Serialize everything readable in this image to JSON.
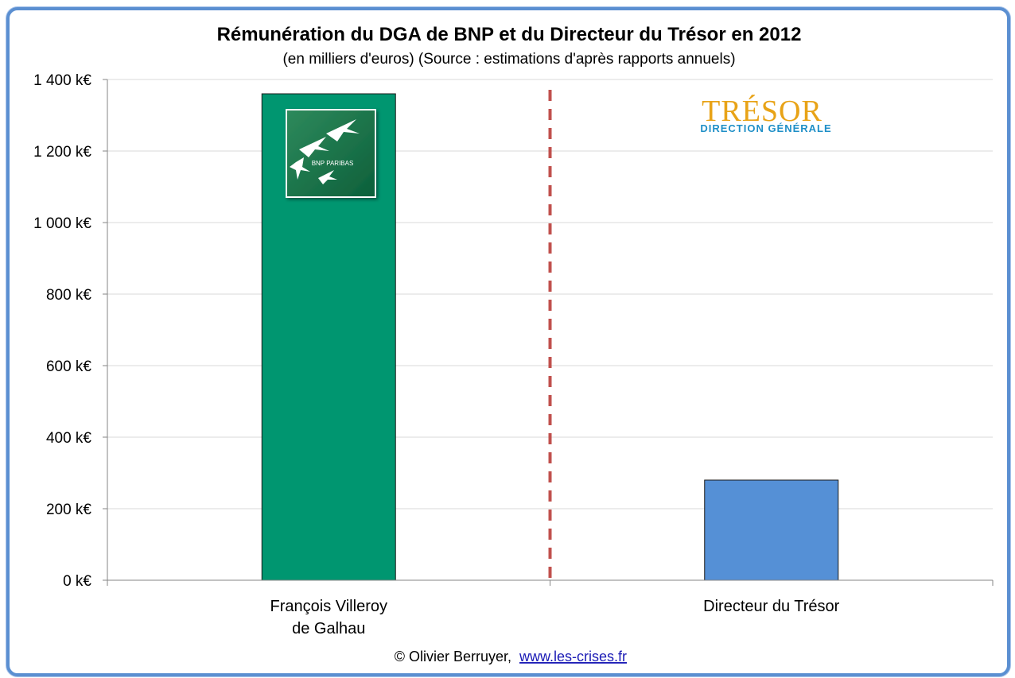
{
  "chart_data": {
    "type": "bar",
    "title": "Rémunération du DGA de BNP et du Directeur du Trésor en 2012",
    "subtitle": "(en milliers d'euros) (Source : estimations d'après rapports annuels)",
    "categories": [
      [
        "François Villeroy",
        "de Galhau"
      ],
      [
        "Directeur du Trésor"
      ]
    ],
    "values": [
      1360,
      280
    ],
    "bar_colors": [
      "#009670",
      "#5590d6"
    ],
    "ylim": [
      0,
      1400
    ],
    "yticks": [
      0,
      200,
      400,
      600,
      800,
      1000,
      1200,
      1400
    ],
    "ytick_labels": [
      "0 k€",
      "200 k€",
      "400 k€",
      "600 k€",
      "800 k€",
      "1 000 k€",
      "1 200 k€",
      "1 400 k€"
    ],
    "grid": true,
    "separator": "dashed-vertical",
    "separator_color": "#c0504d"
  },
  "logos": {
    "bnp": {
      "text": "BNP PARIBAS",
      "color": "#0b7a4b"
    },
    "tresor": {
      "text": "TRÉSOR",
      "subtext": "DIRECTION GÉNÉRALE",
      "color": "#e8a317",
      "subcolor": "#1f8fc7"
    }
  },
  "footer": {
    "credit": "© Olivier Berruyer,",
    "link": "www.les-crises.fr"
  }
}
